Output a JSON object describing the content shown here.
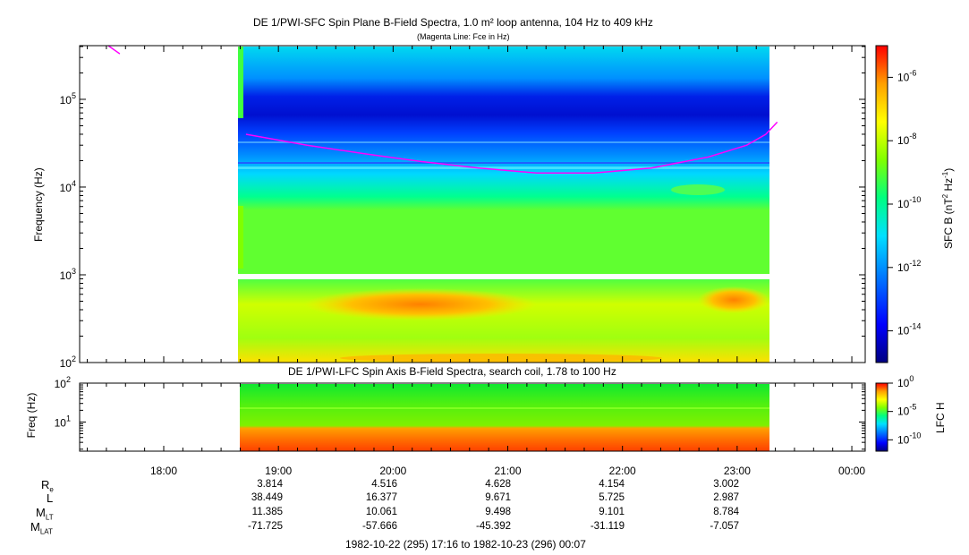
{
  "header": {
    "title": "DE 1/PWI-SFC  Spin Plane B-Field Spectra, 1.0 m² loop antenna, 104 Hz to 409 kHz",
    "subtitle": "(Magenta Line: Fce in Hz)"
  },
  "lower_panel": {
    "title": "DE 1/PWI-LFC  Spin Axis B-Field Spectra, search coil, 1.78 to 100 Hz"
  },
  "chart_data": [
    {
      "type": "heatmap",
      "panel": "sfc",
      "title": "DE 1/PWI-SFC  Spin Plane B-Field Spectra, 1.0 m² loop antenna, 104 Hz to 409 kHz",
      "ylabel": "Frequency (Hz)",
      "yscale": "log",
      "ylim": [
        100,
        409000
      ],
      "y_ticks": [
        {
          "exp": "2"
        },
        {
          "exp": "3"
        },
        {
          "exp": "4"
        },
        {
          "exp": "5"
        }
      ],
      "y_tick_base": "10",
      "x_range": [
        "17:16",
        "00:07"
      ],
      "data_start": "18:43",
      "data_end": "23:21",
      "gap_band_hz": [
        1000,
        1250
      ],
      "colorbar": {
        "label_main": "SFC B (nT",
        "label_sup1": "2",
        "label_mid": " Hz",
        "label_sup2": "-1",
        "label_end": ")",
        "scale": "log",
        "range": [
          1e-15,
          1e-05
        ],
        "ticks": [
          {
            "exp": "-6"
          },
          {
            "exp": "-8"
          },
          {
            "exp": "-10"
          },
          {
            "exp": "-12"
          },
          {
            "exp": "-14"
          }
        ],
        "tick_base": "10",
        "colormap": [
          "#000080",
          "#0000ff",
          "#0080ff",
          "#00e0ff",
          "#00ff80",
          "#80ff00",
          "#ffff00",
          "#ffa000",
          "#ff4000",
          "#ff0000"
        ]
      },
      "fce_line": {
        "label": "Fce in Hz",
        "color": "#ff00ff",
        "points": [
          [
            "17:31",
            480000
          ],
          [
            "17:37",
            330000
          ],
          [
            "18:43",
            40000
          ],
          [
            "19:15",
            30000
          ],
          [
            "19:45",
            24000
          ],
          [
            "20:15",
            19500
          ],
          [
            "20:45",
            16500
          ],
          [
            "21:15",
            14500
          ],
          [
            "21:45",
            14500
          ],
          [
            "22:15",
            16500
          ],
          [
            "22:45",
            22000
          ],
          [
            "23:05",
            30000
          ],
          [
            "23:15",
            40000
          ],
          [
            "23:21",
            55000
          ]
        ]
      }
    },
    {
      "type": "heatmap",
      "panel": "lfc",
      "title": "DE 1/PWI-LFC  Spin Axis B-Field Spectra, search coil, 1.78 to 100 Hz",
      "ylabel": "Freq (Hz)",
      "yscale": "log",
      "ylim": [
        1.78,
        100
      ],
      "y_ticks": [
        {
          "exp": "1"
        },
        {
          "exp": "2"
        }
      ],
      "y_tick_base": "10",
      "data_start": "18:43",
      "data_end": "23:21",
      "colorbar": {
        "label": "LFC H",
        "scale": "log",
        "range": [
          1e-12,
          1
        ],
        "ticks": [
          {
            "exp": "0"
          },
          {
            "exp": "-5"
          },
          {
            "exp": "-10"
          }
        ],
        "tick_base": "10",
        "colormap": [
          "#000080",
          "#0000ff",
          "#0080ff",
          "#00e0ff",
          "#00ff80",
          "#80ff00",
          "#ffff00",
          "#ffa000",
          "#ff4000",
          "#ff0000"
        ]
      }
    }
  ],
  "x_axis": {
    "ticks": [
      "18:00",
      "19:00",
      "20:00",
      "21:00",
      "22:00",
      "23:00",
      "00:00"
    ]
  },
  "ephemeris": {
    "rows": [
      {
        "label": "R",
        "sub": "e",
        "values": [
          "3.814",
          "4.516",
          "4.628",
          "4.154",
          "3.002"
        ]
      },
      {
        "label": "L",
        "sub": "",
        "values": [
          "38.449",
          "16.377",
          "9.671",
          "5.725",
          "2.987"
        ]
      },
      {
        "label": "M",
        "sub": "LT",
        "values": [
          "11.385",
          "10.061",
          "9.498",
          "9.101",
          "8.784"
        ]
      },
      {
        "label": "M",
        "sub": "LAT",
        "values": [
          "-71.725",
          "-57.666",
          "-45.392",
          "-31.119",
          "-7.057"
        ]
      }
    ],
    "date_range": "1982-10-22 (295) 17:16 to 1982-10-23 (296) 00:07"
  }
}
